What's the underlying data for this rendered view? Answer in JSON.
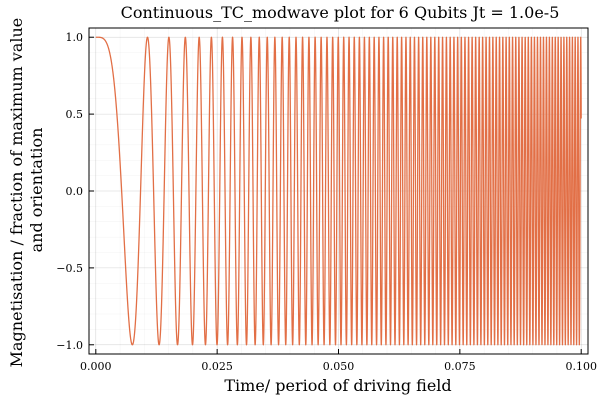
{
  "chart_data": {
    "type": "line",
    "title": "Continuous_TC_modwave plot for 6 Qubits Jt = 1.0e-5",
    "xlabel": "Time/ period of driving field",
    "ylabel_lines": [
      "Magnetisation / fraction of maximum value",
      "and orientation"
    ],
    "xlim": [
      -0.0014,
      0.1014
    ],
    "ylim": [
      -1.06,
      1.06
    ],
    "x_ticks": [
      {
        "value": 0.0,
        "label": "0.000"
      },
      {
        "value": 0.025,
        "label": "0.025"
      },
      {
        "value": 0.05,
        "label": "0.050"
      },
      {
        "value": 0.075,
        "label": "0.075"
      },
      {
        "value": 0.1,
        "label": "0.100"
      }
    ],
    "y_ticks": [
      {
        "value": -1.0,
        "label": "−1.0"
      },
      {
        "value": -0.5,
        "label": "−0.5"
      },
      {
        "value": 0.0,
        "label": "0.0"
      },
      {
        "value": 0.5,
        "label": "0.5"
      },
      {
        "value": 1.0,
        "label": "1.0"
      }
    ],
    "grid": true,
    "legend": "none",
    "series": [
      {
        "color": "#e26f46",
        "x": [
          0.0,
          0.1
        ],
        "y": [
          1.0,
          1.0
        ]
      }
    ]
  }
}
